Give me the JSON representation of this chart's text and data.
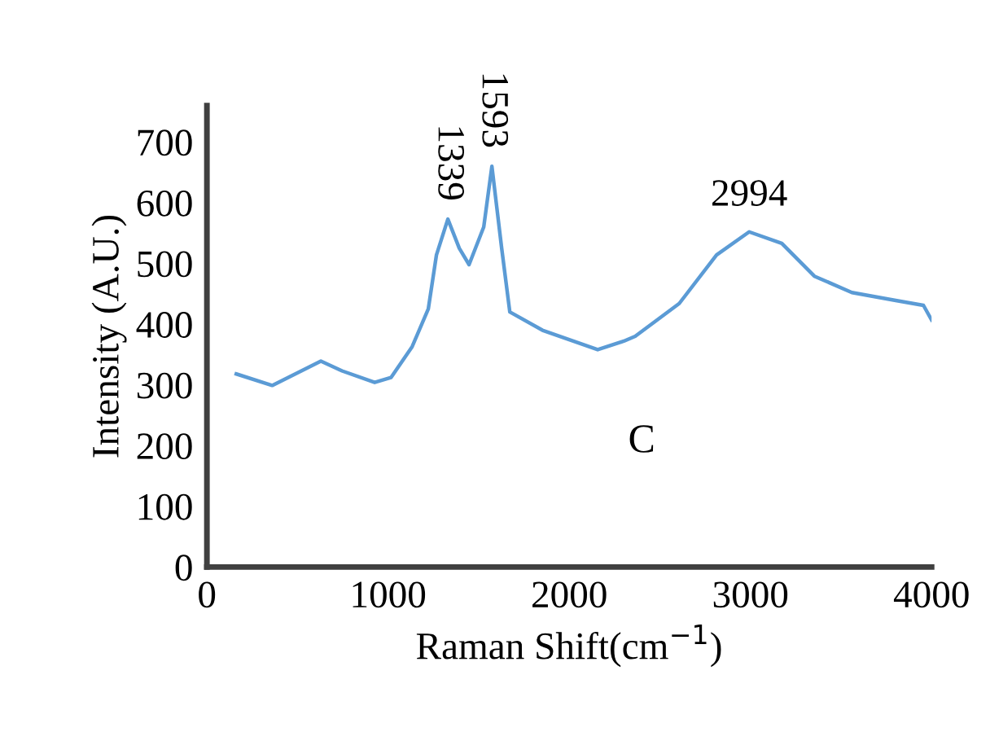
{
  "chart_data": {
    "type": "line",
    "xlabel": "Raman Shift(cm$^{−1}$)",
    "ylabel": "Intensity (A.U.)",
    "xlim": [
      0,
      4000
    ],
    "xticks": [
      0,
      1000,
      2000,
      3000,
      4000
    ],
    "ylim": [
      0,
      760
    ],
    "yticks": [
      0,
      100,
      200,
      300,
      400,
      500,
      600,
      700
    ],
    "grid": false,
    "marker": "none",
    "line_style": "solid",
    "series": [
      {
        "color": "#5b9bd5",
        "x": [
          162,
          360,
          629,
          746,
          926,
          1016,
          1133,
          1222,
          1267,
          1330,
          1393,
          1447,
          1528,
          1573,
          1627,
          1672,
          1852,
          2157,
          2301,
          2364,
          2607,
          2813,
          2993,
          3173,
          3353,
          3560,
          3802,
          3955,
          4000
        ],
        "values": [
          318,
          299,
          339,
          323,
          304,
          312,
          363,
          425,
          514,
          573,
          525,
          498,
          560,
          660,
          525,
          420,
          390,
          358,
          372,
          380,
          434,
          514,
          552,
          533,
          479,
          452,
          439,
          431,
          407
        ]
      }
    ],
    "annotations": [
      {
        "text": "1339",
        "x": 1330,
        "y": 573
      },
      {
        "text": "1593",
        "x": 1573,
        "y": 660
      },
      {
        "text": "2994",
        "x": 2993,
        "y": 552
      },
      "C"
    ]
  }
}
